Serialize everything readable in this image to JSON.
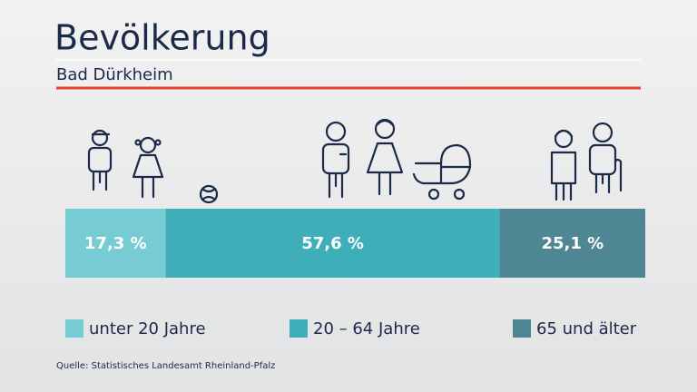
{
  "chart_data": {
    "type": "bar",
    "orientation": "horizontal",
    "stacked": true,
    "title": "Bevölkerung",
    "subtitle": "Bad Dürkheim",
    "source": "Quelle: Statistisches Landesamt Rheinland-Pfalz",
    "series": [
      {
        "name": "unter 20 Jahre",
        "color": "#77ccd3",
        "values": [
          17.3
        ],
        "value_labels": [
          "17,3 %"
        ]
      },
      {
        "name": "20 – 64 Jahre",
        "color": "#3eafb8",
        "values": [
          57.6
        ],
        "value_labels": [
          "57,6 %"
        ]
      },
      {
        "name": "65 und älter",
        "color": "#4e8694",
        "values": [
          25.1
        ],
        "value_labels": [
          "25,1 %"
        ]
      }
    ]
  }
}
